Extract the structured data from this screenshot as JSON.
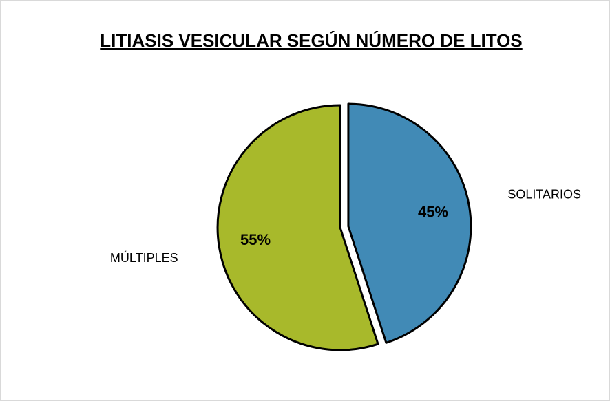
{
  "chart_data": {
    "type": "pie",
    "title": "LITIASIS VESICULAR SEGÚN NÚMERO DE LITOS",
    "categories": [
      "SOLITARIOS",
      "MÚLTIPLES"
    ],
    "values": [
      45,
      55
    ],
    "value_labels": [
      "45%",
      "55%"
    ],
    "colors": [
      "#418ab6",
      "#a8b92b"
    ]
  }
}
